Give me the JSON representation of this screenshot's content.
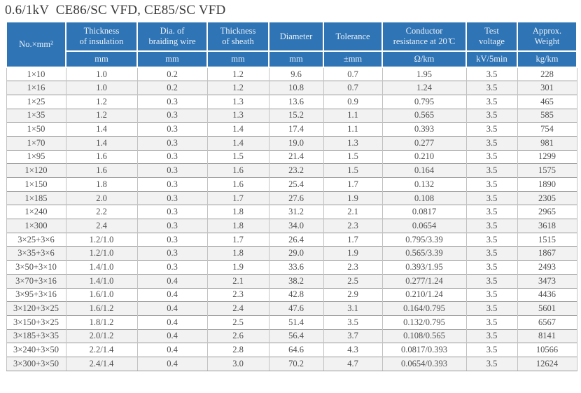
{
  "title": "0.6/1kV  CE86/SC VFD, CE85/SC VFD",
  "colors": {
    "header_bg": "#2f74b5",
    "header_text": "#eaf1f9",
    "header_divider": "#ffffff",
    "row_alt_bg": "#f2f2f2",
    "row_bg": "#ffffff",
    "body_text": "#4f4f4f",
    "h_line": "#999999",
    "v_line": "#c2c2c2",
    "title_text": "#3a3a3a",
    "page_bg": "#ffffff"
  },
  "table": {
    "column_keys": [
      "size",
      "insulation-thickness",
      "braiding-wire-dia",
      "sheath-thickness",
      "diameter",
      "tolerance",
      "conductor-resistance",
      "test-voltage",
      "approx-weight"
    ],
    "headers": [
      {
        "label": "No.×mm²",
        "unit": ""
      },
      {
        "label": "Thickness\nof insulation",
        "unit": "mm"
      },
      {
        "label": "Dia. of\nbraiding wire",
        "unit": "mm"
      },
      {
        "label": "Thickness\nof sheath",
        "unit": "mm"
      },
      {
        "label": "Diameter",
        "unit": "mm"
      },
      {
        "label": "Tolerance",
        "unit": "±mm"
      },
      {
        "label": "Conductor\nresistance at 20 ̊C",
        "unit": "Ω/km"
      },
      {
        "label": "Test\nvoltage",
        "unit": "kV/5min"
      },
      {
        "label": "Approx.\nWeight",
        "unit": "kg/km"
      }
    ],
    "rows": [
      [
        "1×10",
        "1.0",
        "0.2",
        "1.2",
        "9.6",
        "0.7",
        "1.95",
        "3.5",
        "228"
      ],
      [
        "1×16",
        "1.0",
        "0.2",
        "1.2",
        "10.8",
        "0.7",
        "1.24",
        "3.5",
        "301"
      ],
      [
        "1×25",
        "1.2",
        "0.3",
        "1.3",
        "13.6",
        "0.9",
        "0.795",
        "3.5",
        "465"
      ],
      [
        "1×35",
        "1.2",
        "0.3",
        "1.3",
        "15.2",
        "1.1",
        "0.565",
        "3.5",
        "585"
      ],
      [
        "1×50",
        "1.4",
        "0.3",
        "1.4",
        "17.4",
        "1.1",
        "0.393",
        "3.5",
        "754"
      ],
      [
        "1×70",
        "1.4",
        "0.3",
        "1.4",
        "19.0",
        "1.3",
        "0.277",
        "3.5",
        "981"
      ],
      [
        "1×95",
        "1.6",
        "0.3",
        "1.5",
        "21.4",
        "1.5",
        "0.210",
        "3.5",
        "1299"
      ],
      [
        "1×120",
        "1.6",
        "0.3",
        "1.6",
        "23.2",
        "1.5",
        "0.164",
        "3.5",
        "1575"
      ],
      [
        "1×150",
        "1.8",
        "0.3",
        "1.6",
        "25.4",
        "1.7",
        "0.132",
        "3.5",
        "1890"
      ],
      [
        "1×185",
        "2.0",
        "0.3",
        "1.7",
        "27.6",
        "1.9",
        "0.108",
        "3.5",
        "2305"
      ],
      [
        "1×240",
        "2.2",
        "0.3",
        "1.8",
        "31.2",
        "2.1",
        "0.0817",
        "3.5",
        "2965"
      ],
      [
        "1×300",
        "2.4",
        "0.3",
        "1.8",
        "34.0",
        "2.3",
        "0.0654",
        "3.5",
        "3618"
      ],
      [
        "3×25+3×6",
        "1.2/1.0",
        "0.3",
        "1.7",
        "26.4",
        "1.7",
        "0.795/3.39",
        "3.5",
        "1515"
      ],
      [
        "3×35+3×6",
        "1.2/1.0",
        "0.3",
        "1.8",
        "29.0",
        "1.9",
        "0.565/3.39",
        "3.5",
        "1867"
      ],
      [
        "3×50+3×10",
        "1.4/1.0",
        "0.3",
        "1.9",
        "33.6",
        "2.3",
        "0.393/1.95",
        "3.5",
        "2493"
      ],
      [
        "3×70+3×16",
        "1.4/1.0",
        "0.4",
        "2.1",
        "38.2",
        "2.5",
        "0.277/1.24",
        "3.5",
        "3473"
      ],
      [
        "3×95+3×16",
        "1.6/1.0",
        "0.4",
        "2.3",
        "42.8",
        "2.9",
        "0.210/1.24",
        "3.5",
        "4436"
      ],
      [
        "3×120+3×25",
        "1.6/1.2",
        "0.4",
        "2.4",
        "47.6",
        "3.1",
        "0.164/0.795",
        "3.5",
        "5601"
      ],
      [
        "3×150+3×25",
        "1.8/1.2",
        "0.4",
        "2.5",
        "51.4",
        "3.5",
        "0.132/0.795",
        "3.5",
        "6567"
      ],
      [
        "3×185+3×35",
        "2.0/1.2",
        "0.4",
        "2.6",
        "56.4",
        "3.7",
        "0.108/0.565",
        "3.5",
        "8141"
      ],
      [
        "3×240+3×50",
        "2.2/1.4",
        "0.4",
        "2.8",
        "64.6",
        "4.3",
        "0.0817/0.393",
        "3.5",
        "10566"
      ],
      [
        "3×300+3×50",
        "2.4/1.4",
        "0.4",
        "3.0",
        "70.2",
        "4.7",
        "0.0654/0.393",
        "3.5",
        "12624"
      ]
    ]
  }
}
